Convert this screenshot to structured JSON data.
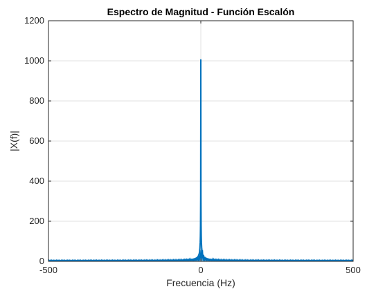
{
  "chart_data": {
    "type": "line",
    "title": "Espectro de Magnitud - Función Escalón",
    "xlabel": "Frecuencia (Hz)",
    "ylabel": "|X(f)|",
    "xlim": [
      -500,
      500
    ],
    "ylim": [
      0,
      1200
    ],
    "xticks": [
      -500,
      0,
      500
    ],
    "xtick_labels": [
      "-500",
      "0",
      "500"
    ],
    "yticks": [
      0,
      200,
      400,
      600,
      800,
      1000,
      1200
    ],
    "ytick_labels": [
      "0",
      "200",
      "400",
      "600",
      "800",
      "1000",
      "1200"
    ],
    "grid": true,
    "box": true,
    "series": [
      {
        "color": "#0072BD",
        "x": [
          -500,
          -400,
          -300,
          -200,
          -150,
          -100,
          -80,
          -60,
          -50,
          -40,
          -30,
          -25,
          -20,
          -15,
          -12,
          -10,
          -8,
          -6,
          -5,
          -4,
          -3,
          -2,
          -1.5,
          -1,
          -0.5,
          0,
          0.5,
          1,
          1.5,
          2,
          3,
          4,
          5,
          6,
          8,
          10,
          12,
          15,
          20,
          25,
          30,
          40,
          50,
          60,
          80,
          100,
          150,
          200,
          300,
          400,
          500
        ],
        "y": [
          3,
          3,
          3,
          4,
          4,
          5,
          5,
          6,
          7,
          8,
          10,
          11,
          13,
          16,
          19,
          22,
          27,
          35,
          40,
          50,
          65,
          95,
          125,
          180,
          330,
          1005,
          330,
          180,
          125,
          95,
          65,
          50,
          40,
          35,
          27,
          22,
          19,
          16,
          13,
          11,
          10,
          8,
          7,
          6,
          5,
          5,
          4,
          4,
          3,
          3,
          3
        ]
      }
    ]
  }
}
